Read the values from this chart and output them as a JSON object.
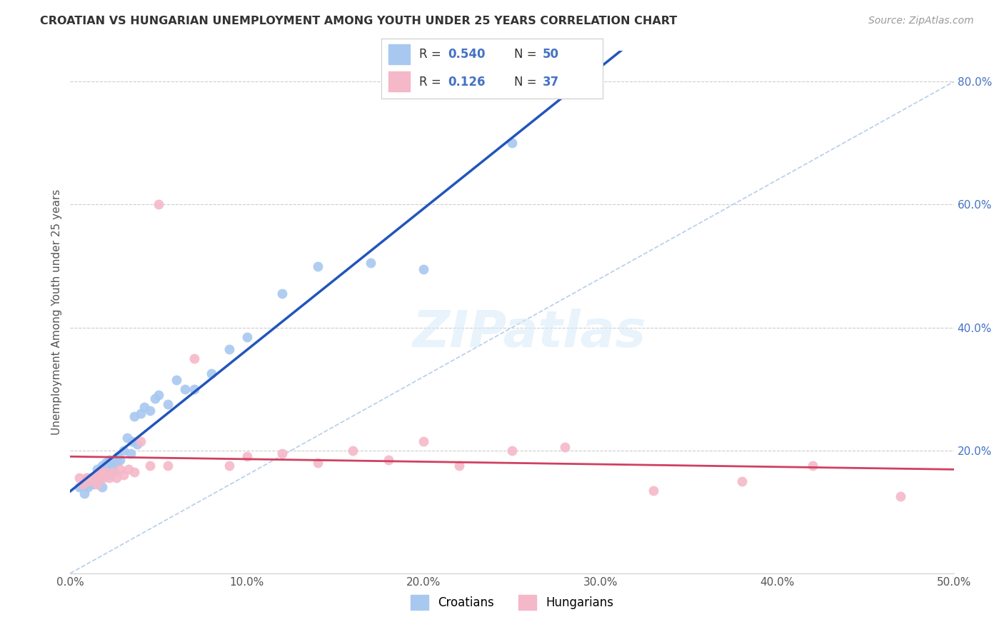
{
  "title": "CROATIAN VS HUNGARIAN UNEMPLOYMENT AMONG YOUTH UNDER 25 YEARS CORRELATION CHART",
  "source": "Source: ZipAtlas.com",
  "ylabel": "Unemployment Among Youth under 25 years",
  "xlim": [
    0,
    0.5
  ],
  "ylim": [
    0,
    0.85
  ],
  "xtick_labels": [
    "0.0%",
    "10.0%",
    "20.0%",
    "30.0%",
    "40.0%",
    "50.0%"
  ],
  "xtick_values": [
    0.0,
    0.1,
    0.2,
    0.3,
    0.4,
    0.5
  ],
  "ytick_right_labels": [
    "20.0%",
    "40.0%",
    "60.0%",
    "80.0%"
  ],
  "ytick_right_values": [
    0.2,
    0.4,
    0.6,
    0.8
  ],
  "croatian_color": "#A8C8F0",
  "hungarian_color": "#F5B8C8",
  "regression_croatian_color": "#2255BB",
  "regression_hungarian_color": "#D04060",
  "diagonal_color": "#B0C8E8",
  "watermark": "ZIPatlas",
  "croatians_x": [
    0.005,
    0.007,
    0.008,
    0.009,
    0.01,
    0.01,
    0.011,
    0.012,
    0.013,
    0.014,
    0.015,
    0.015,
    0.016,
    0.017,
    0.018,
    0.018,
    0.019,
    0.02,
    0.021,
    0.022,
    0.022,
    0.023,
    0.024,
    0.025,
    0.026,
    0.027,
    0.028,
    0.03,
    0.032,
    0.034,
    0.035,
    0.036,
    0.038,
    0.04,
    0.042,
    0.045,
    0.048,
    0.05,
    0.055,
    0.06,
    0.065,
    0.07,
    0.08,
    0.09,
    0.1,
    0.12,
    0.14,
    0.17,
    0.2,
    0.25
  ],
  "croatians_y": [
    0.14,
    0.145,
    0.13,
    0.145,
    0.14,
    0.155,
    0.15,
    0.155,
    0.145,
    0.15,
    0.155,
    0.17,
    0.16,
    0.165,
    0.14,
    0.175,
    0.165,
    0.18,
    0.175,
    0.17,
    0.185,
    0.16,
    0.175,
    0.165,
    0.18,
    0.19,
    0.185,
    0.2,
    0.22,
    0.195,
    0.215,
    0.255,
    0.21,
    0.26,
    0.27,
    0.265,
    0.285,
    0.29,
    0.275,
    0.315,
    0.3,
    0.3,
    0.325,
    0.365,
    0.385,
    0.455,
    0.5,
    0.505,
    0.495,
    0.7
  ],
  "hungarians_x": [
    0.005,
    0.007,
    0.009,
    0.011,
    0.013,
    0.015,
    0.016,
    0.017,
    0.018,
    0.019,
    0.02,
    0.022,
    0.024,
    0.026,
    0.028,
    0.03,
    0.033,
    0.036,
    0.04,
    0.045,
    0.05,
    0.055,
    0.07,
    0.09,
    0.1,
    0.12,
    0.14,
    0.16,
    0.18,
    0.2,
    0.22,
    0.25,
    0.28,
    0.33,
    0.38,
    0.42,
    0.47
  ],
  "hungarians_y": [
    0.155,
    0.145,
    0.155,
    0.15,
    0.155,
    0.145,
    0.16,
    0.155,
    0.165,
    0.155,
    0.165,
    0.155,
    0.165,
    0.155,
    0.17,
    0.16,
    0.17,
    0.165,
    0.215,
    0.175,
    0.6,
    0.175,
    0.35,
    0.175,
    0.19,
    0.195,
    0.18,
    0.2,
    0.185,
    0.215,
    0.175,
    0.2,
    0.205,
    0.135,
    0.15,
    0.175,
    0.125
  ]
}
